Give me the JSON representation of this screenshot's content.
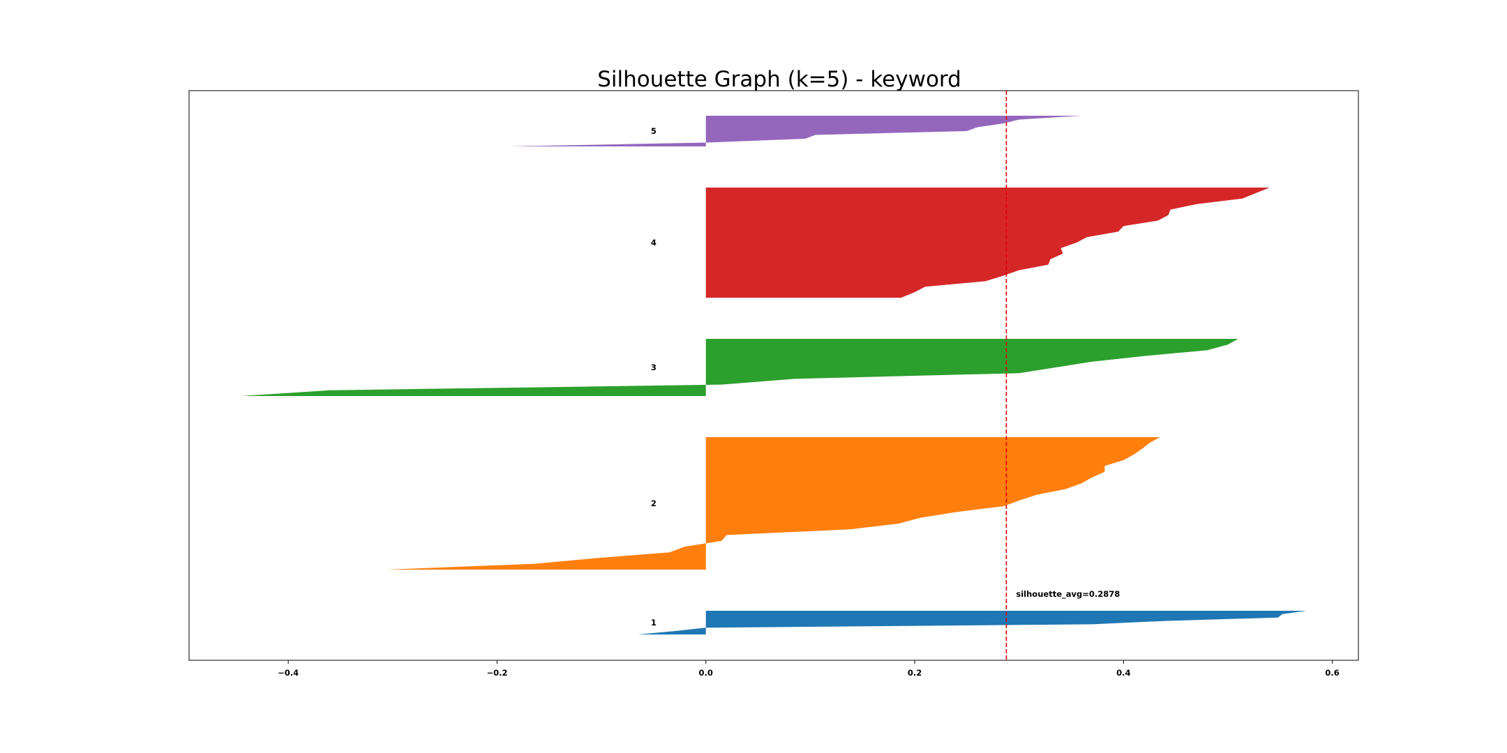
{
  "chart_data": {
    "type": "area",
    "title": "Silhouette Graph (k=5) - keyword",
    "xlabel": "",
    "ylabel": "",
    "xlim": [
      -0.495,
      0.625
    ],
    "x_ticks": [
      -0.4,
      -0.2,
      0.0,
      0.2,
      0.4,
      0.6
    ],
    "x_tick_labels": [
      "−0.4",
      "−0.2",
      "0.0",
      "0.2",
      "0.4",
      "0.6"
    ],
    "grid": false,
    "average_line": {
      "x": 0.2878,
      "label": "silhouette_avg=0.2878",
      "color": "#e00000",
      "style": "dashed"
    },
    "clusters": [
      {
        "name": "1",
        "color": "#1f77b4",
        "values": [
          0.575,
          0.552,
          0.548,
          0.44,
          0.37,
          0.0,
          -0.03,
          -0.065
        ]
      },
      {
        "name": "2",
        "color": "#ff7f0e",
        "values": [
          0.435,
          0.425,
          0.418,
          0.41,
          0.4,
          0.382,
          0.382,
          0.37,
          0.36,
          0.345,
          0.317,
          0.3,
          0.285,
          0.24,
          0.205,
          0.185,
          0.138,
          0.02,
          0.015,
          -0.02,
          -0.035,
          -0.105,
          -0.165,
          -0.306
        ]
      },
      {
        "name": "3",
        "color": "#2ca02c",
        "values": [
          0.51,
          0.5,
          0.48,
          0.42,
          0.37,
          0.335,
          0.3,
          0.085,
          0.015,
          -0.36,
          -0.445
        ]
      },
      {
        "name": "4",
        "color": "#d62728",
        "values": [
          0.54,
          0.527,
          0.514,
          0.47,
          0.445,
          0.443,
          0.433,
          0.4,
          0.395,
          0.365,
          0.355,
          0.34,
          0.342,
          0.33,
          0.328,
          0.3,
          0.285,
          0.268,
          0.21,
          0.2,
          0.187
        ]
      },
      {
        "name": "5",
        "color": "#9467bd",
        "values": [
          0.36,
          0.3,
          0.285,
          0.26,
          0.25,
          0.105,
          0.095,
          0.0,
          -0.19
        ]
      }
    ]
  }
}
